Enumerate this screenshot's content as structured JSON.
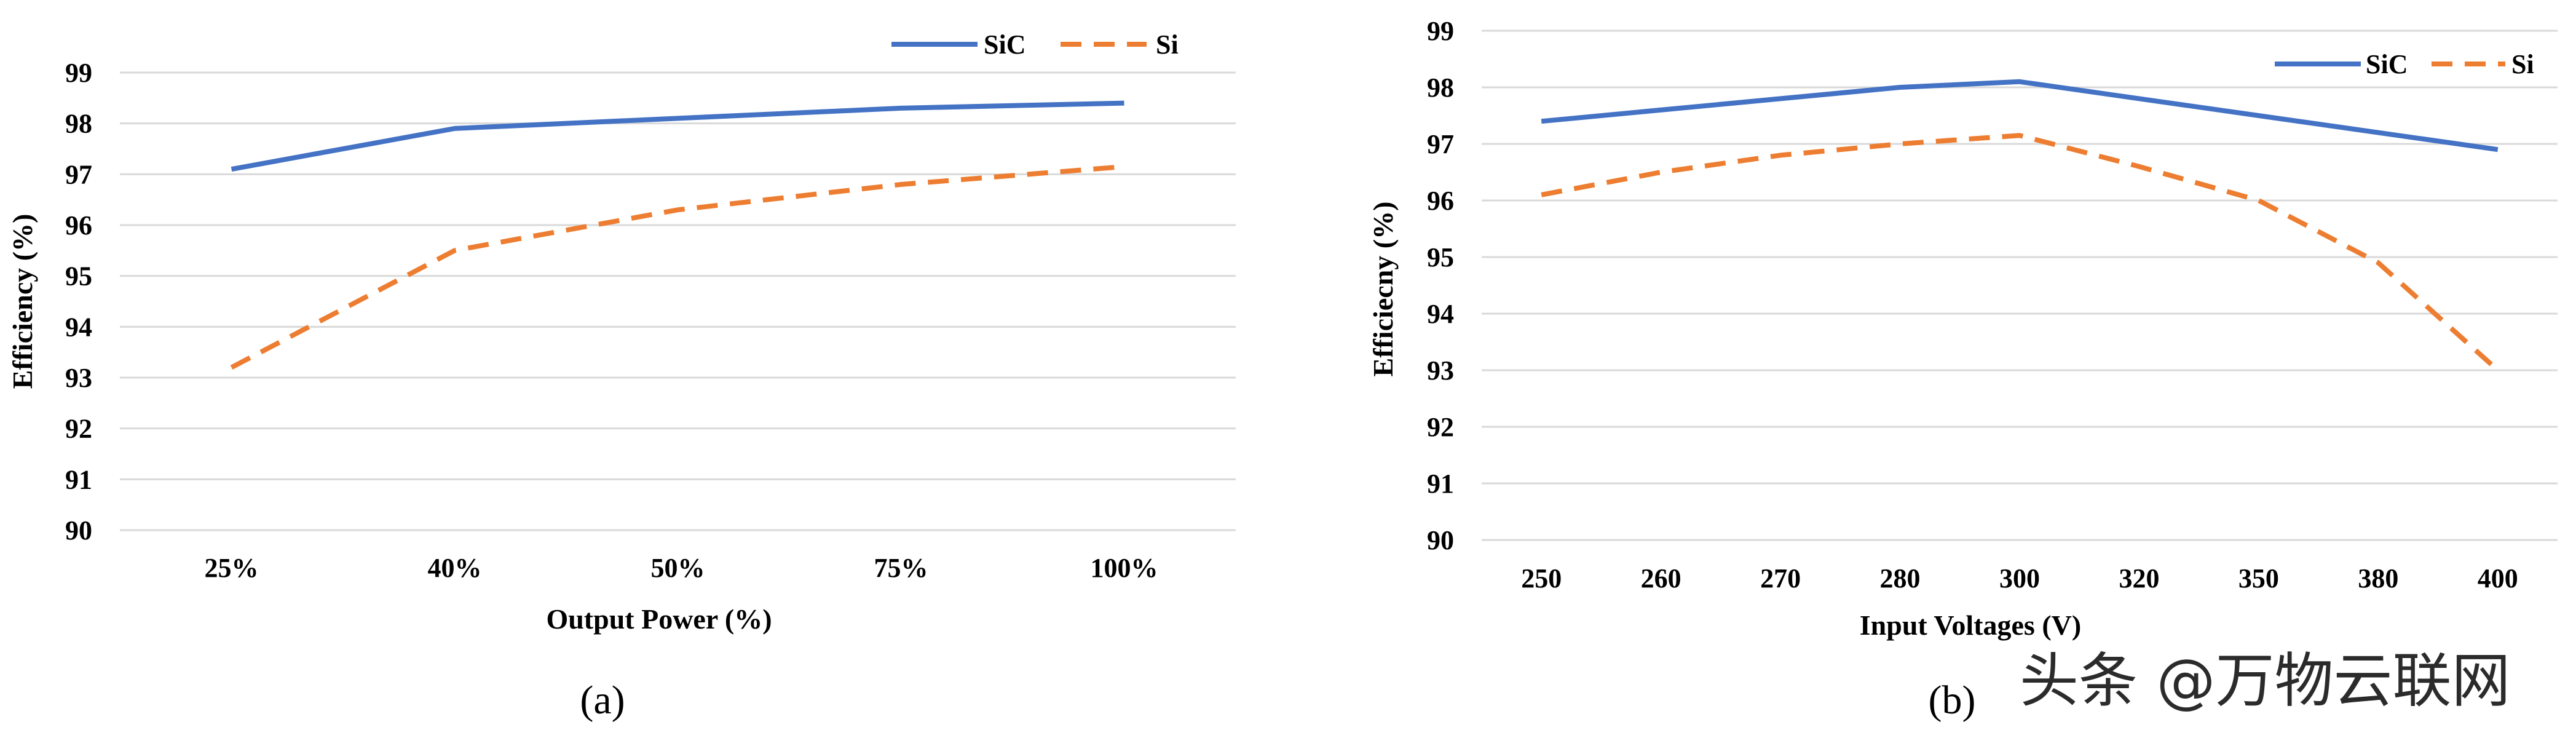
{
  "watermark": "头条 @万物云联网",
  "chart_data": [
    {
      "type": "line",
      "panel_label": "(a)",
      "xlabel": "Output Power (%)",
      "ylabel": "Efficiency (%)",
      "categories": [
        "25%",
        "40%",
        "50%",
        "75%",
        "100%"
      ],
      "ylim": [
        90,
        99
      ],
      "yticks": [
        90,
        91,
        92,
        93,
        94,
        95,
        96,
        97,
        98,
        99
      ],
      "grid": true,
      "legend_placement": "top-right",
      "series": [
        {
          "name": "SiC",
          "values": [
            97.1,
            97.9,
            98.1,
            98.3,
            98.4
          ],
          "color": "#4472C4",
          "dash": "solid"
        },
        {
          "name": "Si",
          "values": [
            93.2,
            95.5,
            96.3,
            96.8,
            97.15
          ],
          "color": "#ED7D31",
          "dash": "dashed"
        }
      ]
    },
    {
      "type": "line",
      "panel_label": "(b)",
      "xlabel": "Input Voltages (V)",
      "ylabel": "Efficiecny (%)",
      "categories": [
        "250",
        "260",
        "270",
        "280",
        "300",
        "320",
        "350",
        "380",
        "400"
      ],
      "ylim": [
        90,
        99
      ],
      "yticks": [
        90,
        91,
        92,
        93,
        94,
        95,
        96,
        97,
        98,
        99
      ],
      "grid": true,
      "legend_placement": "top-right",
      "series": [
        {
          "name": "SiC",
          "values": [
            97.4,
            null,
            null,
            98.0,
            98.1,
            null,
            null,
            null,
            96.9
          ],
          "color": "#4472C4",
          "dash": "solid"
        },
        {
          "name": "Si",
          "values": [
            96.1,
            96.5,
            96.8,
            97.0,
            97.15,
            96.6,
            96.0,
            94.9,
            93.0
          ],
          "color": "#ED7D31",
          "dash": "dashed"
        }
      ]
    }
  ]
}
